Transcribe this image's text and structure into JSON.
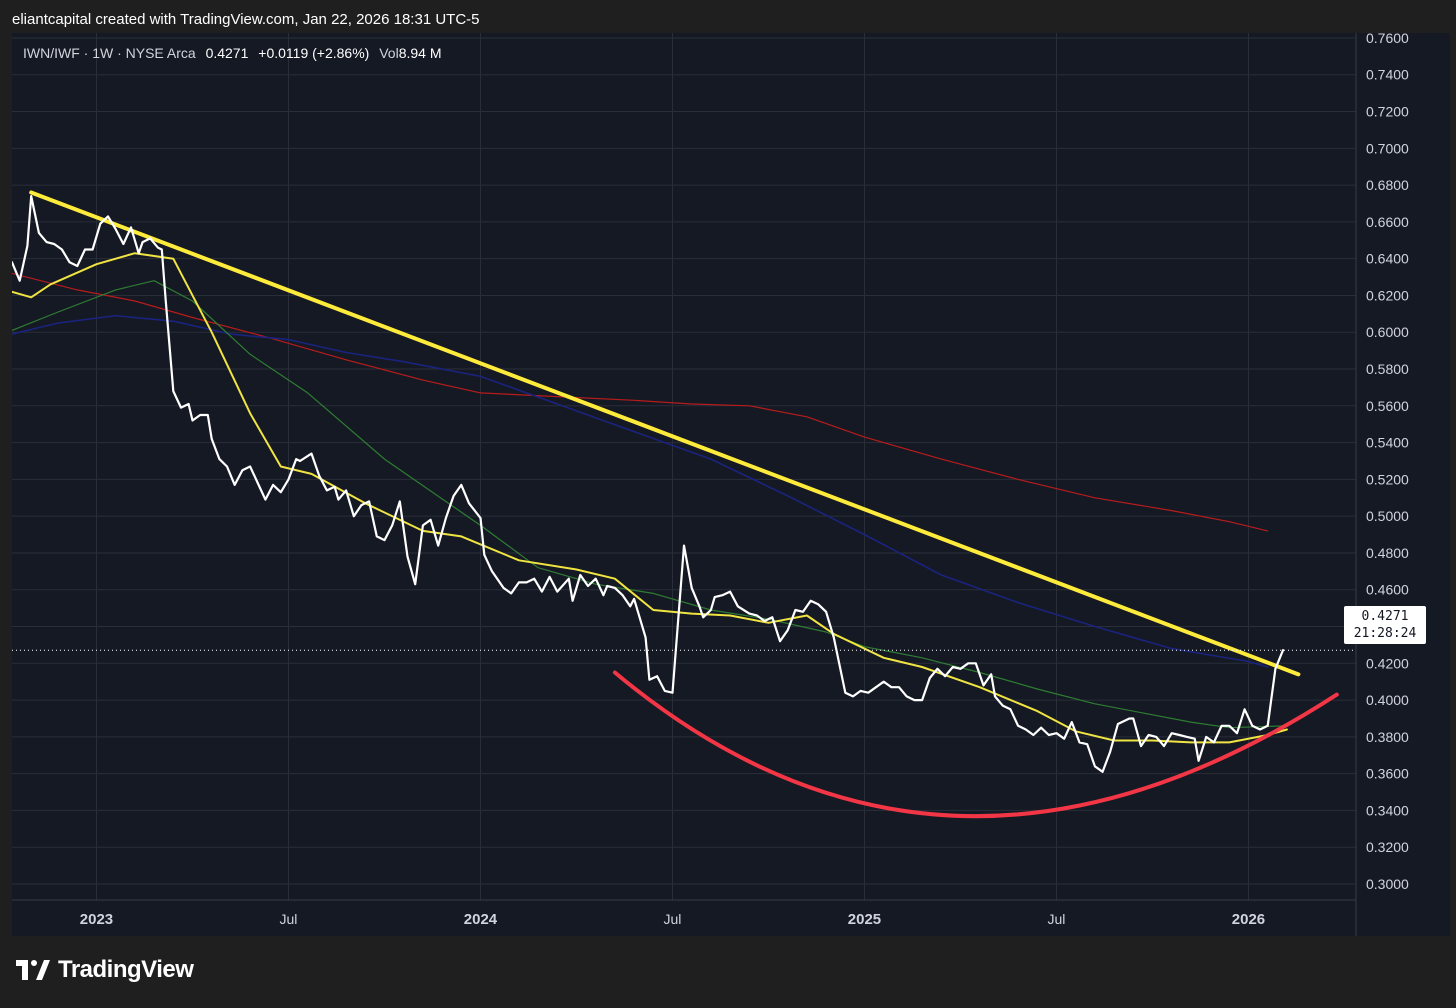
{
  "header": {
    "credit": "eliantcapital created with TradingView.com, Jan 22, 2026 18:31 UTC-5"
  },
  "legend": {
    "symbol": "IWN/IWF · 1W · NYSE Arca",
    "price": "0.4271",
    "change": "+0.0119 (+2.86%)",
    "vol_label": "Vol",
    "vol_value": "8.94 M"
  },
  "price_tag": {
    "price": "0.4271",
    "countdown": "21:28:24"
  },
  "footer": {
    "brand": "TradingView",
    "logo_icon": "tradingview-logo-icon"
  },
  "colors": {
    "background": "#151924",
    "price_line": "#ffffff",
    "ma_yellow": "#f0e442",
    "ma_green": "#2e7d32",
    "ma_blue": "#1a237e",
    "ma_red": "#b71c1c",
    "trendline": "#ffeb3b",
    "arc": "#f23645",
    "grid": "#2a2e39"
  },
  "chart_data": {
    "type": "line",
    "symbol": "IWN/IWF",
    "interval": "1W",
    "x_ticks": [
      "2023",
      "Jul",
      "2024",
      "Jul",
      "2025",
      "Jul",
      "2026"
    ],
    "x_tick_dates": [
      2023.0,
      2023.5,
      2024.0,
      2024.5,
      2025.0,
      2025.5,
      2026.0
    ],
    "xlim": [
      2022.78,
      2026.28
    ],
    "y_ticks": [
      "0.3000",
      "0.3200",
      "0.3400",
      "0.3600",
      "0.3800",
      "0.4000",
      "0.4200",
      "0.4400",
      "0.4600",
      "0.4800",
      "0.5000",
      "0.5200",
      "0.5400",
      "0.5600",
      "0.5800",
      "0.6000",
      "0.6200",
      "0.6400",
      "0.6600",
      "0.6800",
      "0.7000",
      "0.7200",
      "0.7400",
      "0.7600"
    ],
    "ylim": [
      0.2913,
      0.7627
    ],
    "last_price": 0.4271,
    "grid": true,
    "series": [
      {
        "role": "price",
        "points": [
          [
            2022.78,
            0.638
          ],
          [
            2022.8,
            0.628
          ],
          [
            2022.82,
            0.647
          ],
          [
            2022.83,
            0.674
          ],
          [
            2022.85,
            0.654
          ],
          [
            2022.87,
            0.649
          ],
          [
            2022.89,
            0.648
          ],
          [
            2022.91,
            0.645
          ],
          [
            2022.93,
            0.638
          ],
          [
            2022.95,
            0.636
          ],
          [
            2022.97,
            0.645
          ],
          [
            2022.99,
            0.645
          ],
          [
            2023.01,
            0.659
          ],
          [
            2023.03,
            0.663
          ],
          [
            2023.05,
            0.656
          ],
          [
            2023.07,
            0.648
          ],
          [
            2023.09,
            0.657
          ],
          [
            2023.11,
            0.643
          ],
          [
            2023.12,
            0.649
          ],
          [
            2023.14,
            0.651
          ],
          [
            2023.16,
            0.646
          ],
          [
            2023.17,
            0.645
          ],
          [
            2023.18,
            0.618
          ],
          [
            2023.2,
            0.568
          ],
          [
            2023.22,
            0.559
          ],
          [
            2023.24,
            0.561
          ],
          [
            2023.25,
            0.552
          ],
          [
            2023.27,
            0.555
          ],
          [
            2023.29,
            0.555
          ],
          [
            2023.3,
            0.542
          ],
          [
            2023.32,
            0.531
          ],
          [
            2023.34,
            0.527
          ],
          [
            2023.36,
            0.517
          ],
          [
            2023.38,
            0.525
          ],
          [
            2023.4,
            0.527
          ],
          [
            2023.42,
            0.518
          ],
          [
            2023.44,
            0.509
          ],
          [
            2023.46,
            0.517
          ],
          [
            2023.48,
            0.513
          ],
          [
            2023.5,
            0.52
          ],
          [
            2023.52,
            0.531
          ],
          [
            2023.53,
            0.53
          ],
          [
            2023.56,
            0.534
          ],
          [
            2023.58,
            0.522
          ],
          [
            2023.6,
            0.514
          ],
          [
            2023.62,
            0.516
          ],
          [
            2023.63,
            0.509
          ],
          [
            2023.65,
            0.514
          ],
          [
            2023.67,
            0.5
          ],
          [
            2023.69,
            0.506
          ],
          [
            2023.71,
            0.508
          ],
          [
            2023.73,
            0.489
          ],
          [
            2023.75,
            0.487
          ],
          [
            2023.77,
            0.495
          ],
          [
            2023.79,
            0.508
          ],
          [
            2023.81,
            0.478
          ],
          [
            2023.83,
            0.463
          ],
          [
            2023.85,
            0.495
          ],
          [
            2023.87,
            0.498
          ],
          [
            2023.89,
            0.484
          ],
          [
            2023.91,
            0.499
          ],
          [
            2023.93,
            0.511
          ],
          [
            2023.95,
            0.517
          ],
          [
            2023.97,
            0.507
          ],
          [
            2024.0,
            0.499
          ],
          [
            2024.01,
            0.479
          ],
          [
            2024.03,
            0.47
          ],
          [
            2024.06,
            0.461
          ],
          [
            2024.08,
            0.458
          ],
          [
            2024.1,
            0.464
          ],
          [
            2024.12,
            0.464
          ],
          [
            2024.14,
            0.466
          ],
          [
            2024.16,
            0.459
          ],
          [
            2024.18,
            0.467
          ],
          [
            2024.2,
            0.459
          ],
          [
            2024.23,
            0.466
          ],
          [
            2024.24,
            0.454
          ],
          [
            2024.26,
            0.468
          ],
          [
            2024.28,
            0.462
          ],
          [
            2024.3,
            0.466
          ],
          [
            2024.32,
            0.457
          ],
          [
            2024.33,
            0.462
          ],
          [
            2024.35,
            0.461
          ],
          [
            2024.37,
            0.457
          ],
          [
            2024.39,
            0.451
          ],
          [
            2024.4,
            0.455
          ],
          [
            2024.43,
            0.434
          ],
          [
            2024.44,
            0.411
          ],
          [
            2024.46,
            0.413
          ],
          [
            2024.48,
            0.405
          ],
          [
            2024.5,
            0.404
          ],
          [
            2024.53,
            0.484
          ],
          [
            2024.55,
            0.461
          ],
          [
            2024.57,
            0.451
          ],
          [
            2024.58,
            0.445
          ],
          [
            2024.6,
            0.449
          ],
          [
            2024.61,
            0.456
          ],
          [
            2024.63,
            0.457
          ],
          [
            2024.65,
            0.459
          ],
          [
            2024.67,
            0.451
          ],
          [
            2024.7,
            0.447
          ],
          [
            2024.72,
            0.446
          ],
          [
            2024.74,
            0.443
          ],
          [
            2024.76,
            0.445
          ],
          [
            2024.78,
            0.432
          ],
          [
            2024.8,
            0.438
          ],
          [
            2024.82,
            0.449
          ],
          [
            2024.84,
            0.448
          ],
          [
            2024.86,
            0.454
          ],
          [
            2024.88,
            0.452
          ],
          [
            2024.9,
            0.448
          ],
          [
            2024.92,
            0.434
          ],
          [
            2024.95,
            0.404
          ],
          [
            2024.97,
            0.402
          ],
          [
            2024.99,
            0.405
          ],
          [
            2025.01,
            0.404
          ],
          [
            2025.03,
            0.407
          ],
          [
            2025.05,
            0.41
          ],
          [
            2025.07,
            0.407
          ],
          [
            2025.09,
            0.407
          ],
          [
            2025.11,
            0.402
          ],
          [
            2025.13,
            0.4
          ],
          [
            2025.15,
            0.4
          ],
          [
            2025.17,
            0.412
          ],
          [
            2025.19,
            0.417
          ],
          [
            2025.21,
            0.413
          ],
          [
            2025.23,
            0.418
          ],
          [
            2025.25,
            0.417
          ],
          [
            2025.27,
            0.42
          ],
          [
            2025.29,
            0.42
          ],
          [
            2025.31,
            0.408
          ],
          [
            2025.33,
            0.414
          ],
          [
            2025.34,
            0.402
          ],
          [
            2025.36,
            0.397
          ],
          [
            2025.38,
            0.395
          ],
          [
            2025.4,
            0.386
          ],
          [
            2025.42,
            0.384
          ],
          [
            2025.44,
            0.381
          ],
          [
            2025.46,
            0.385
          ],
          [
            2025.48,
            0.381
          ],
          [
            2025.5,
            0.382
          ],
          [
            2025.52,
            0.379
          ],
          [
            2025.54,
            0.388
          ],
          [
            2025.56,
            0.377
          ],
          [
            2025.58,
            0.376
          ],
          [
            2025.6,
            0.364
          ],
          [
            2025.62,
            0.361
          ],
          [
            2025.64,
            0.372
          ],
          [
            2025.66,
            0.387
          ],
          [
            2025.69,
            0.39
          ],
          [
            2025.7,
            0.39
          ],
          [
            2025.72,
            0.375
          ],
          [
            2025.74,
            0.381
          ],
          [
            2025.76,
            0.38
          ],
          [
            2025.78,
            0.375
          ],
          [
            2025.8,
            0.382
          ],
          [
            2025.82,
            0.381
          ],
          [
            2025.84,
            0.38
          ],
          [
            2025.86,
            0.379
          ],
          [
            2025.87,
            0.367
          ],
          [
            2025.89,
            0.38
          ],
          [
            2025.91,
            0.377
          ],
          [
            2025.93,
            0.386
          ],
          [
            2025.95,
            0.386
          ],
          [
            2025.97,
            0.382
          ],
          [
            2025.99,
            0.395
          ],
          [
            2026.01,
            0.386
          ],
          [
            2026.03,
            0.384
          ],
          [
            2026.05,
            0.386
          ],
          [
            2026.07,
            0.417
          ],
          [
            2026.09,
            0.4271
          ]
        ]
      },
      {
        "role": "ma-yellow",
        "points": [
          [
            2022.78,
            0.622
          ],
          [
            2022.83,
            0.619
          ],
          [
            2022.88,
            0.626
          ],
          [
            2023.0,
            0.637
          ],
          [
            2023.1,
            0.643
          ],
          [
            2023.2,
            0.64
          ],
          [
            2023.3,
            0.6
          ],
          [
            2023.4,
            0.556
          ],
          [
            2023.48,
            0.527
          ],
          [
            2023.56,
            0.523
          ],
          [
            2023.7,
            0.507
          ],
          [
            2023.85,
            0.492
          ],
          [
            2023.95,
            0.489
          ],
          [
            2024.1,
            0.476
          ],
          [
            2024.25,
            0.471
          ],
          [
            2024.35,
            0.466
          ],
          [
            2024.45,
            0.449
          ],
          [
            2024.55,
            0.447
          ],
          [
            2024.65,
            0.446
          ],
          [
            2024.75,
            0.442
          ],
          [
            2024.85,
            0.446
          ],
          [
            2024.92,
            0.436
          ],
          [
            2025.05,
            0.423
          ],
          [
            2025.15,
            0.418
          ],
          [
            2025.3,
            0.407
          ],
          [
            2025.45,
            0.394
          ],
          [
            2025.55,
            0.383
          ],
          [
            2025.65,
            0.378
          ],
          [
            2025.75,
            0.378
          ],
          [
            2025.85,
            0.377
          ],
          [
            2025.95,
            0.377
          ],
          [
            2026.05,
            0.381
          ],
          [
            2026.1,
            0.384
          ]
        ]
      },
      {
        "role": "ma-green",
        "points": [
          [
            2022.78,
            0.601
          ],
          [
            2022.9,
            0.611
          ],
          [
            2023.05,
            0.623
          ],
          [
            2023.15,
            0.628
          ],
          [
            2023.25,
            0.617
          ],
          [
            2023.4,
            0.588
          ],
          [
            2023.55,
            0.567
          ],
          [
            2023.75,
            0.531
          ],
          [
            2024.0,
            0.495
          ],
          [
            2024.15,
            0.472
          ],
          [
            2024.3,
            0.463
          ],
          [
            2024.45,
            0.458
          ],
          [
            2024.6,
            0.449
          ],
          [
            2024.75,
            0.444
          ],
          [
            2024.9,
            0.437
          ],
          [
            2025.0,
            0.429
          ],
          [
            2025.15,
            0.423
          ],
          [
            2025.3,
            0.415
          ],
          [
            2025.45,
            0.406
          ],
          [
            2025.6,
            0.398
          ],
          [
            2025.75,
            0.392
          ],
          [
            2025.85,
            0.388
          ],
          [
            2025.95,
            0.385
          ],
          [
            2026.1,
            0.386
          ]
        ]
      },
      {
        "role": "ma-blue",
        "points": [
          [
            2022.78,
            0.599
          ],
          [
            2022.9,
            0.605
          ],
          [
            2023.05,
            0.609
          ],
          [
            2023.2,
            0.606
          ],
          [
            2023.35,
            0.599
          ],
          [
            2023.5,
            0.596
          ],
          [
            2023.65,
            0.589
          ],
          [
            2023.8,
            0.584
          ],
          [
            2024.0,
            0.576
          ],
          [
            2024.2,
            0.561
          ],
          [
            2024.4,
            0.546
          ],
          [
            2024.6,
            0.531
          ],
          [
            2024.8,
            0.511
          ],
          [
            2025.0,
            0.49
          ],
          [
            2025.2,
            0.468
          ],
          [
            2025.4,
            0.453
          ],
          [
            2025.6,
            0.44
          ],
          [
            2025.8,
            0.428
          ],
          [
            2026.0,
            0.421
          ],
          [
            2026.05,
            0.418
          ]
        ]
      },
      {
        "role": "ma-red",
        "points": [
          [
            2022.78,
            0.632
          ],
          [
            2022.95,
            0.623
          ],
          [
            2023.1,
            0.617
          ],
          [
            2023.25,
            0.608
          ],
          [
            2023.45,
            0.597
          ],
          [
            2023.65,
            0.585
          ],
          [
            2023.85,
            0.574
          ],
          [
            2024.0,
            0.567
          ],
          [
            2024.2,
            0.565
          ],
          [
            2024.4,
            0.563
          ],
          [
            2024.55,
            0.561
          ],
          [
            2024.7,
            0.56
          ],
          [
            2024.85,
            0.554
          ],
          [
            2025.0,
            0.543
          ],
          [
            2025.2,
            0.531
          ],
          [
            2025.4,
            0.52
          ],
          [
            2025.6,
            0.51
          ],
          [
            2025.8,
            0.503
          ],
          [
            2025.95,
            0.497
          ],
          [
            2026.05,
            0.492
          ]
        ]
      }
    ],
    "trendline": [
      [
        2022.83,
        0.676
      ],
      [
        2026.13,
        0.414
      ]
    ],
    "arc": {
      "start": [
        2024.35,
        0.415
      ],
      "vertex": [
        2025.25,
        0.337
      ],
      "end": [
        2026.23,
        0.403
      ]
    }
  }
}
